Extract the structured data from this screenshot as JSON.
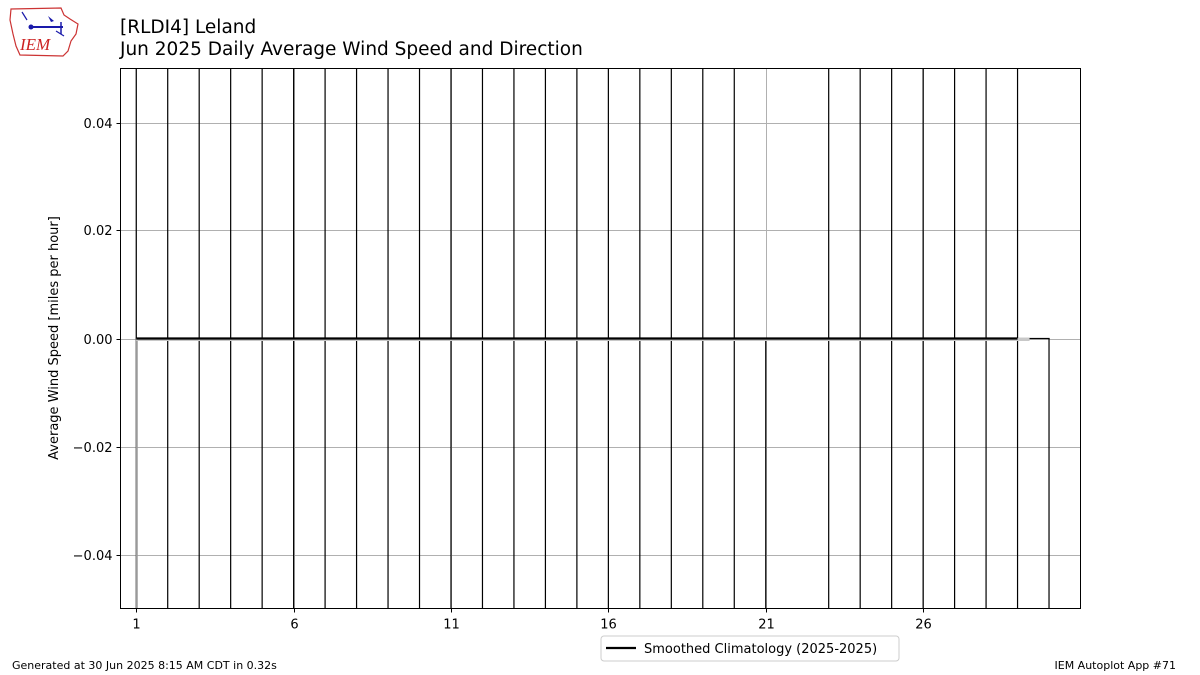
{
  "header": {
    "station": "[RLDI4] Leland",
    "subtitle": "Jun 2025 Daily Average Wind Speed and Direction"
  },
  "logo": {
    "text": "IEM",
    "icon": "iem-logo-icon",
    "color": "#cc2222"
  },
  "footer": {
    "generated": "Generated at 30 Jun 2025 8:15 AM CDT in 0.32s",
    "app": "IEM Autoplot App #71"
  },
  "chart_data": {
    "type": "bar",
    "ylabel": "Average Wind Speed [miles per hour]",
    "xlabel": "",
    "xlim": [
      0.5,
      31
    ],
    "ylim": [
      -0.05,
      0.05
    ],
    "x_ticks": [
      1,
      6,
      11,
      16,
      21,
      26
    ],
    "y_ticks": [
      -0.04,
      -0.02,
      0.0,
      0.02,
      0.04
    ],
    "y_tick_labels": [
      "−0.04",
      "−0.02",
      "0.00",
      "0.02",
      "0.04"
    ],
    "grid": true,
    "legend": {
      "placement": "bottom-center",
      "entries": [
        "Smoothed Climatology (2025-2025)"
      ]
    },
    "days": [
      1,
      2,
      3,
      4,
      5,
      6,
      7,
      8,
      9,
      10,
      11,
      12,
      13,
      14,
      15,
      16,
      17,
      18,
      19,
      20,
      23,
      24,
      25,
      26,
      27,
      28,
      29
    ],
    "values": [
      0,
      0,
      0,
      0,
      0,
      0,
      0,
      0,
      0,
      0,
      0,
      0,
      0,
      0,
      0,
      0,
      0,
      0,
      0,
      0,
      0,
      0,
      0,
      0,
      0,
      0,
      0
    ],
    "climatology": {
      "name": "Smoothed Climatology (2025-2025)",
      "x": [
        1,
        29
      ],
      "y": [
        0,
        0
      ],
      "color": "#000000"
    },
    "colors": {
      "bar_edge": "#000000",
      "grid": "#b0b0b0",
      "clim_shadow": "#c8c8c8"
    }
  }
}
